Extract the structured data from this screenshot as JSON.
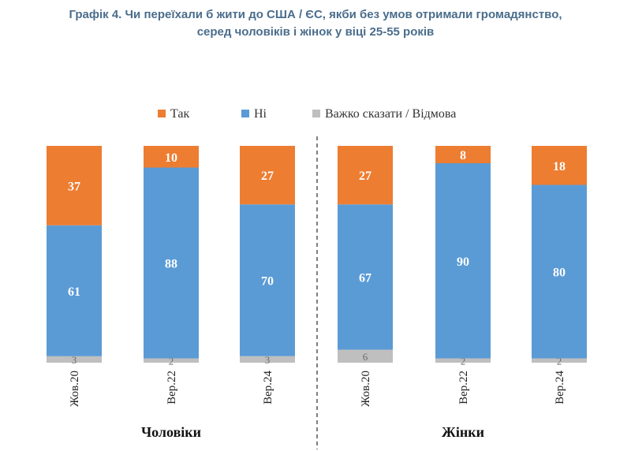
{
  "title_line1": "Графік 4. Чи переїхали б жити до США / ЄС, якби без умов отримали громадянство,",
  "title_line2": "серед чоловіків і жінок у віці 25-55 років",
  "chart_data": {
    "type": "bar",
    "stacked": true,
    "percent": true,
    "legend_position": "top",
    "grid": false,
    "colors": {
      "Так": "#ed7d31",
      "Ні": "#5b9bd5",
      "Важко сказати / Відмова": "#bfbfbf"
    },
    "groups": [
      {
        "label": "Чоловіки",
        "categories": [
          "Жов.20",
          "Вер.22",
          "Вер.24"
        ]
      },
      {
        "label": "Жінки",
        "categories": [
          "Жов.20",
          "Вер.22",
          "Вер.24"
        ]
      }
    ],
    "categories": [
      "Жов.20",
      "Вер.22",
      "Вер.24",
      "Жов.20",
      "Вер.22",
      "Вер.24"
    ],
    "series": [
      {
        "name": "Важко сказати / Відмова",
        "values": [
          3,
          2,
          3,
          6,
          2,
          2
        ]
      },
      {
        "name": "Ні",
        "values": [
          61,
          88,
          70,
          67,
          90,
          80
        ]
      },
      {
        "name": "Так",
        "values": [
          37,
          10,
          27,
          27,
          8,
          18
        ]
      }
    ]
  }
}
